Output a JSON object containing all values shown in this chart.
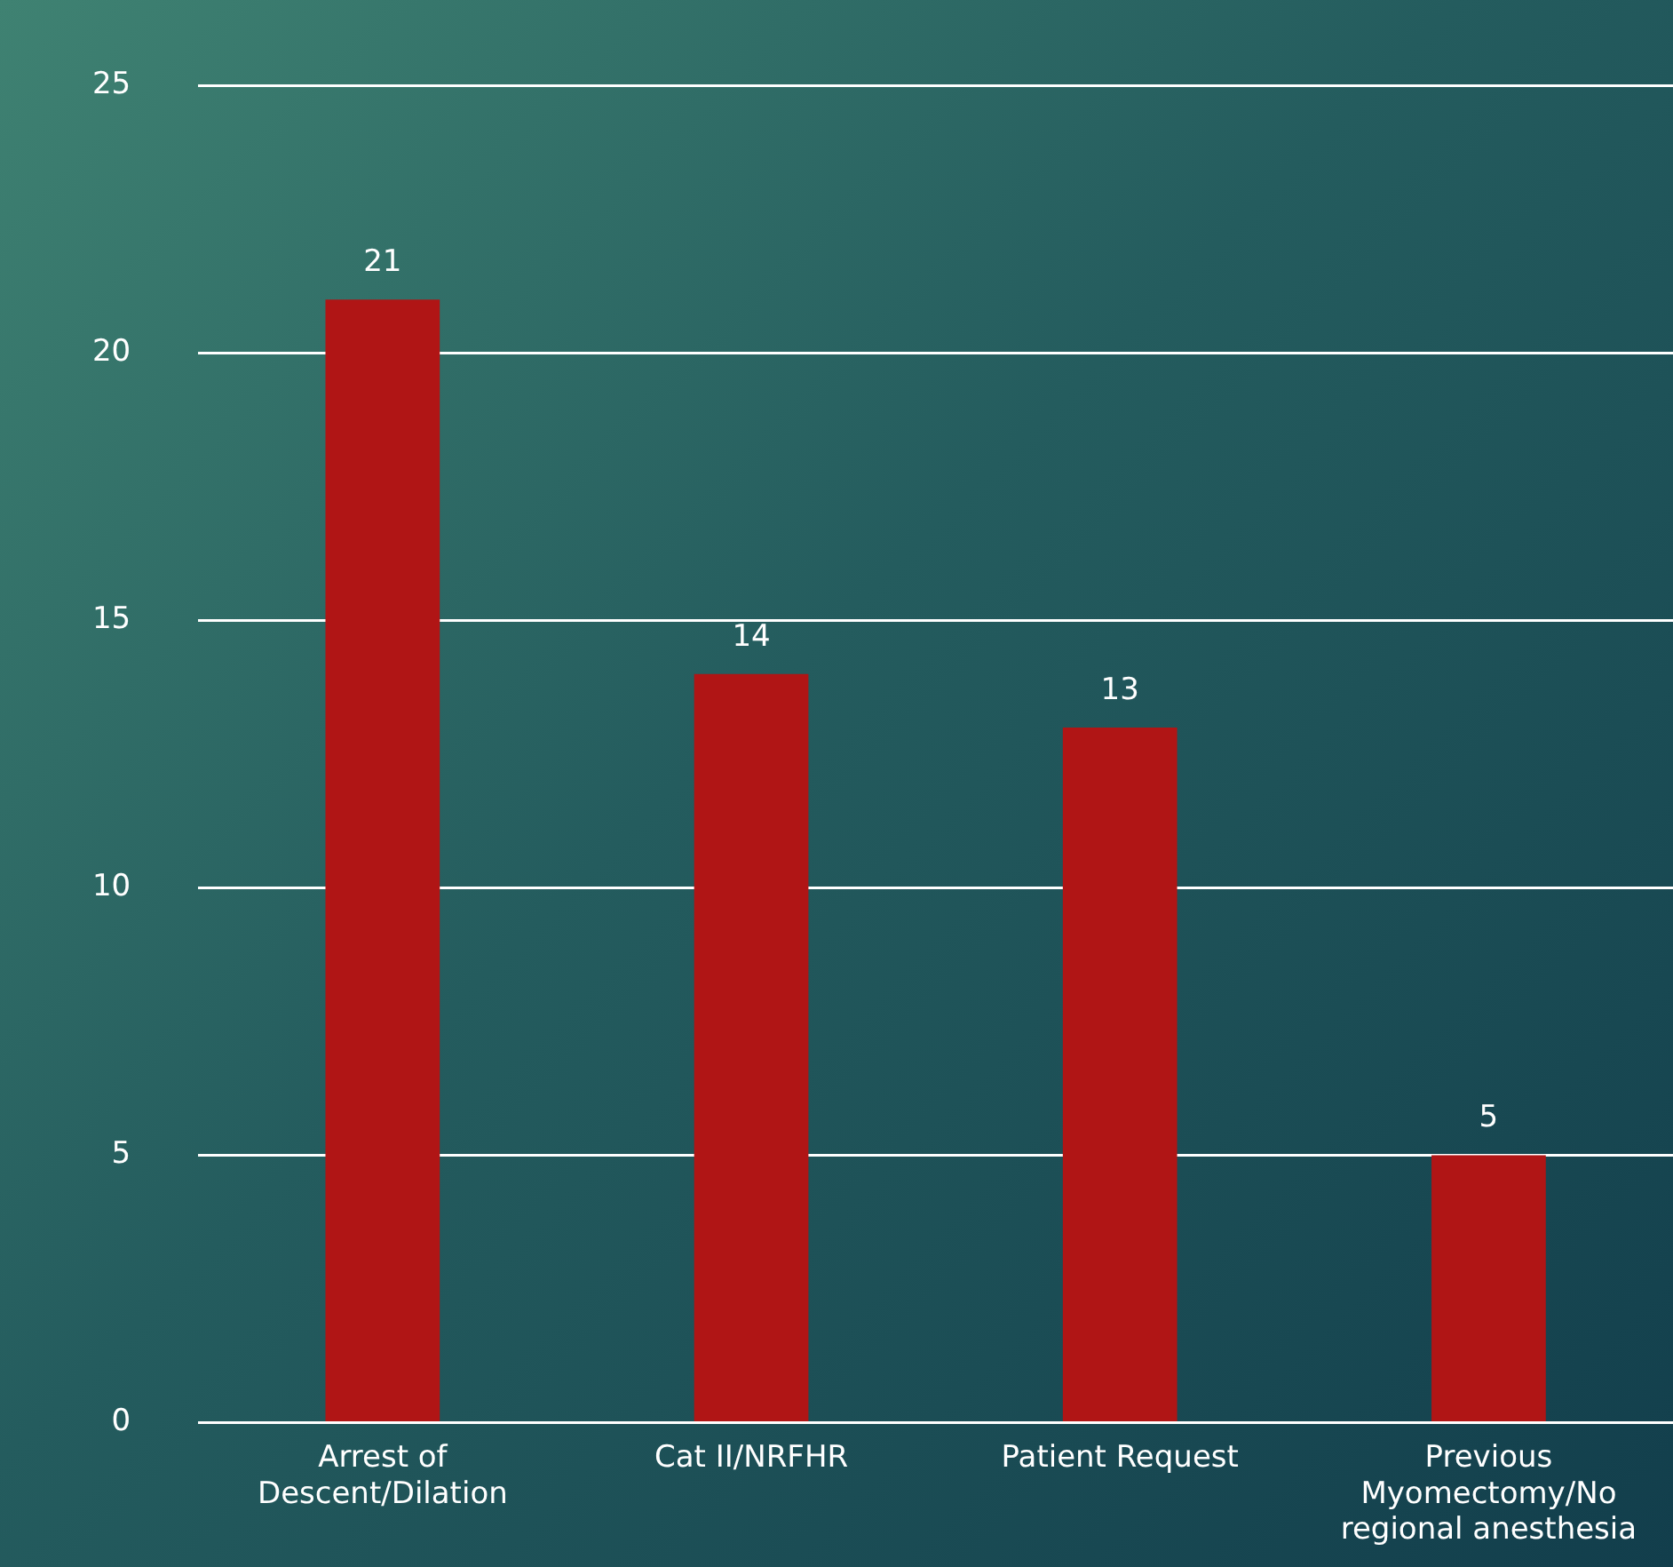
{
  "chart_data": {
    "type": "bar",
    "categories": [
      "Arrest of Descent/Dilation",
      "Cat II/NRFHR",
      "Patient Request",
      "Previous Myomectomy/No regional anesthesia"
    ],
    "values": [
      21,
      14,
      13,
      5
    ],
    "color": "#b01515",
    "ylim": [
      0,
      25
    ],
    "yticks": [
      0,
      5,
      10,
      15,
      20,
      25
    ],
    "grid": "y",
    "data_labels": true
  }
}
